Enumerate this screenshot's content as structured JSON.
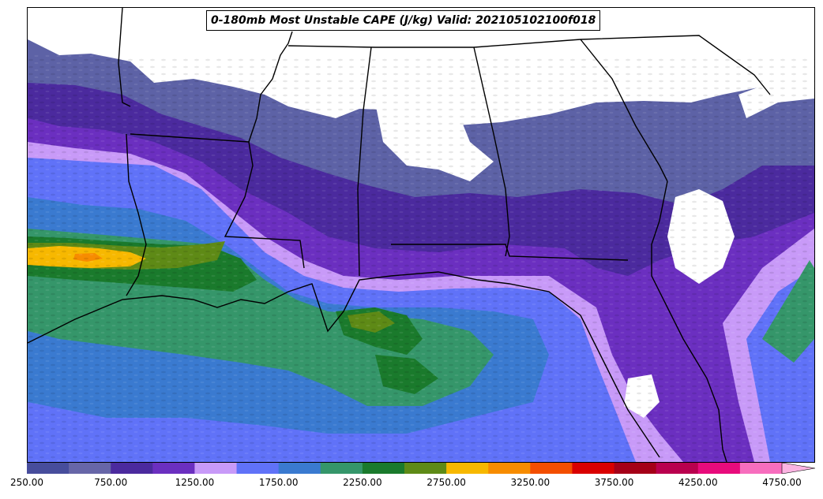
{
  "title": "0-180mb Most Unstable CAPE (J/kg) Valid: 202105102100f018",
  "colorbar": {
    "levels": [
      250,
      500,
      750,
      1000,
      1250,
      1500,
      1750,
      2000,
      2250,
      2500,
      2750,
      3000,
      3250,
      3500,
      3750,
      4000,
      4250,
      4500,
      4750
    ],
    "colors": [
      "#474d9c",
      "#6766a8",
      "#4b2a9e",
      "#6b2fc0",
      "#c89af8",
      "#6072f8",
      "#3a7ad0",
      "#35966a",
      "#1a7a2c",
      "#5e8a16",
      "#f7b800",
      "#f78c00",
      "#f34e00",
      "#d90000",
      "#a50018",
      "#b9004e",
      "#e80b7c",
      "#f76ebe"
    ],
    "extend_color": "#fbb4e2",
    "tick_labels": [
      "250.00",
      "750.00",
      "1250.00",
      "1750.00",
      "2250.00",
      "2750.00",
      "3250.00",
      "3750.00",
      "4250.00",
      "4750.00"
    ]
  }
}
